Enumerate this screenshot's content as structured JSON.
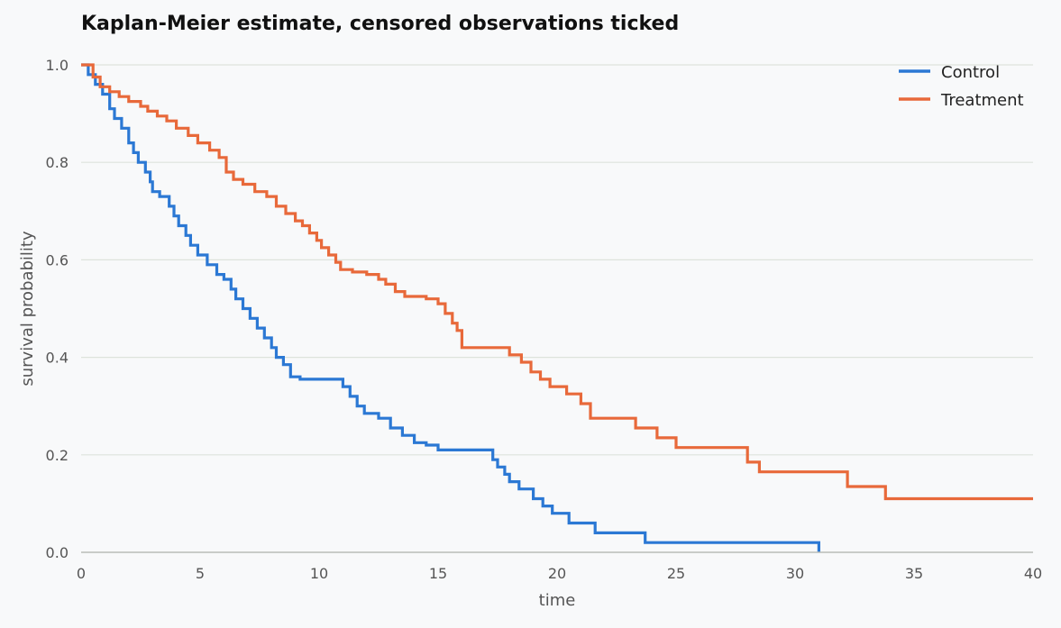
{
  "chart_data": {
    "type": "line",
    "subtype": "step",
    "title": "Kaplan-Meier estimate, censored observations ticked",
    "xlabel": "time",
    "ylabel": "survival probability",
    "xlim": [
      0,
      40
    ],
    "ylim": [
      0,
      1
    ],
    "xticks": [
      0,
      5,
      10,
      15,
      20,
      25,
      30,
      35,
      40
    ],
    "yticks": [
      0.0,
      0.2,
      0.4,
      0.6,
      0.8,
      1.0
    ],
    "xtick_labels": [
      "0",
      "5",
      "10",
      "15",
      "20",
      "25",
      "30",
      "35",
      "40"
    ],
    "ytick_labels": [
      "0.0",
      "0.2",
      "0.4",
      "0.6",
      "0.8",
      "1.0"
    ],
    "grid": "horizontal",
    "legend_position": "top-right",
    "series": [
      {
        "name": "Control",
        "color": "#2b78d4",
        "points": [
          [
            0,
            1.0
          ],
          [
            0.3,
            0.98
          ],
          [
            0.6,
            0.96
          ],
          [
            0.9,
            0.94
          ],
          [
            1.2,
            0.91
          ],
          [
            1.4,
            0.89
          ],
          [
            1.7,
            0.87
          ],
          [
            2.0,
            0.84
          ],
          [
            2.2,
            0.82
          ],
          [
            2.4,
            0.8
          ],
          [
            2.7,
            0.78
          ],
          [
            2.9,
            0.76
          ],
          [
            3.0,
            0.74
          ],
          [
            3.3,
            0.73
          ],
          [
            3.7,
            0.71
          ],
          [
            3.9,
            0.69
          ],
          [
            4.1,
            0.67
          ],
          [
            4.4,
            0.65
          ],
          [
            4.6,
            0.63
          ],
          [
            4.9,
            0.61
          ],
          [
            5.3,
            0.59
          ],
          [
            5.7,
            0.57
          ],
          [
            6.0,
            0.56
          ],
          [
            6.3,
            0.54
          ],
          [
            6.5,
            0.52
          ],
          [
            6.8,
            0.5
          ],
          [
            7.1,
            0.48
          ],
          [
            7.4,
            0.46
          ],
          [
            7.7,
            0.44
          ],
          [
            8.0,
            0.42
          ],
          [
            8.2,
            0.4
          ],
          [
            8.5,
            0.385
          ],
          [
            8.8,
            0.36
          ],
          [
            9.2,
            0.355
          ],
          [
            10.0,
            0.355
          ],
          [
            11.0,
            0.34
          ],
          [
            11.3,
            0.32
          ],
          [
            11.6,
            0.3
          ],
          [
            11.9,
            0.285
          ],
          [
            12.5,
            0.275
          ],
          [
            13.0,
            0.255
          ],
          [
            13.5,
            0.24
          ],
          [
            14.0,
            0.225
          ],
          [
            14.5,
            0.22
          ],
          [
            15.0,
            0.21
          ],
          [
            17.0,
            0.21
          ],
          [
            17.3,
            0.19
          ],
          [
            17.5,
            0.175
          ],
          [
            17.8,
            0.16
          ],
          [
            18.0,
            0.145
          ],
          [
            18.4,
            0.13
          ],
          [
            19.0,
            0.11
          ],
          [
            19.4,
            0.095
          ],
          [
            19.8,
            0.08
          ],
          [
            20.5,
            0.06
          ],
          [
            21.6,
            0.04
          ],
          [
            23.7,
            0.02
          ],
          [
            31.0,
            0.02
          ],
          [
            31.0,
            0.0
          ]
        ]
      },
      {
        "name": "Treatment",
        "color": "#e8693a",
        "points": [
          [
            0,
            1.0
          ],
          [
            0.5,
            0.975
          ],
          [
            0.8,
            0.955
          ],
          [
            1.2,
            0.945
          ],
          [
            1.6,
            0.935
          ],
          [
            2.0,
            0.925
          ],
          [
            2.5,
            0.915
          ],
          [
            2.8,
            0.905
          ],
          [
            3.2,
            0.895
          ],
          [
            3.6,
            0.885
          ],
          [
            4.0,
            0.87
          ],
          [
            4.5,
            0.855
          ],
          [
            4.9,
            0.84
          ],
          [
            5.4,
            0.825
          ],
          [
            5.8,
            0.81
          ],
          [
            6.1,
            0.78
          ],
          [
            6.4,
            0.765
          ],
          [
            6.8,
            0.755
          ],
          [
            7.3,
            0.74
          ],
          [
            7.8,
            0.73
          ],
          [
            8.2,
            0.71
          ],
          [
            8.6,
            0.695
          ],
          [
            9.0,
            0.68
          ],
          [
            9.3,
            0.67
          ],
          [
            9.6,
            0.655
          ],
          [
            9.9,
            0.64
          ],
          [
            10.1,
            0.625
          ],
          [
            10.4,
            0.61
          ],
          [
            10.7,
            0.595
          ],
          [
            10.9,
            0.58
          ],
          [
            11.4,
            0.575
          ],
          [
            12.0,
            0.57
          ],
          [
            12.5,
            0.56
          ],
          [
            12.8,
            0.55
          ],
          [
            13.2,
            0.535
          ],
          [
            13.6,
            0.525
          ],
          [
            14.5,
            0.52
          ],
          [
            15.0,
            0.51
          ],
          [
            15.3,
            0.49
          ],
          [
            15.6,
            0.47
          ],
          [
            15.8,
            0.455
          ],
          [
            16.0,
            0.42
          ],
          [
            17.5,
            0.42
          ],
          [
            18.0,
            0.405
          ],
          [
            18.5,
            0.39
          ],
          [
            18.9,
            0.37
          ],
          [
            19.3,
            0.355
          ],
          [
            19.7,
            0.34
          ],
          [
            20.4,
            0.325
          ],
          [
            21.0,
            0.305
          ],
          [
            21.4,
            0.275
          ],
          [
            22.0,
            0.275
          ],
          [
            23.3,
            0.255
          ],
          [
            24.2,
            0.235
          ],
          [
            25.0,
            0.215
          ],
          [
            27.5,
            0.215
          ],
          [
            28.0,
            0.185
          ],
          [
            28.5,
            0.165
          ],
          [
            31.0,
            0.165
          ],
          [
            32.2,
            0.135
          ],
          [
            33.8,
            0.11
          ],
          [
            40,
            0.11
          ]
        ]
      }
    ]
  }
}
